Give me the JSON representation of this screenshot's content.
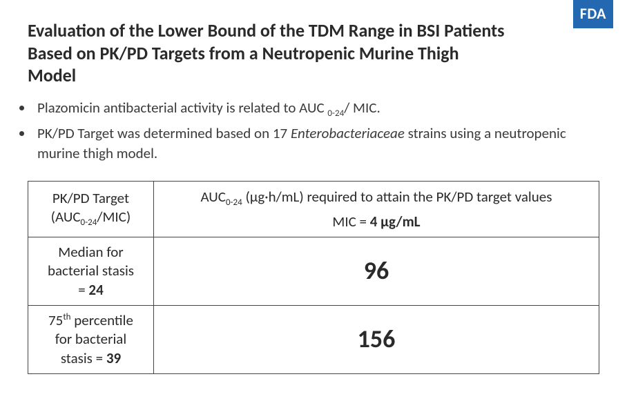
{
  "badge": {
    "text": "FDA",
    "bg": "#2468b2"
  },
  "title": "Evaluation of the Lower Bound of the TDM Range in BSI Patients Based on PK/PD Targets from a Neutropenic Murine Thigh Model",
  "bullets": [
    {
      "pre": "Plazomicin antibacterial activity is related to AUC ",
      "sub": "0-24",
      "post": "/ MIC."
    },
    {
      "pre": "PK/PD Target was determined based on 17 ",
      "italic": "Enterobacteriaceae",
      "post2": " strains using a neutropenic murine thigh model."
    }
  ],
  "table": {
    "header_left": {
      "line1": "PK/PD Target",
      "line2_pre": "(AUC",
      "line2_sub": "0-24",
      "line2_post": "/MIC)"
    },
    "header_right": {
      "line1_pre": "AUC",
      "line1_sub": "0-24",
      "line1_post": " (µg·h/mL) required to attain the PK/PD target values",
      "mic_pre": "MIC = ",
      "mic_bold": "4 µg/mL"
    },
    "rows": [
      {
        "left": {
          "l1": "Median for",
          "l2": "bacterial stasis",
          "l3_pre": "= ",
          "l3_bold": "24"
        },
        "value": "96"
      },
      {
        "left": {
          "l1_pre": "75",
          "l1_sup": "th",
          "l1_post": " percentile",
          "l2": "for bacterial",
          "l3_pre": "stasis = ",
          "l3_bold": "39"
        },
        "value": "156"
      }
    ]
  }
}
